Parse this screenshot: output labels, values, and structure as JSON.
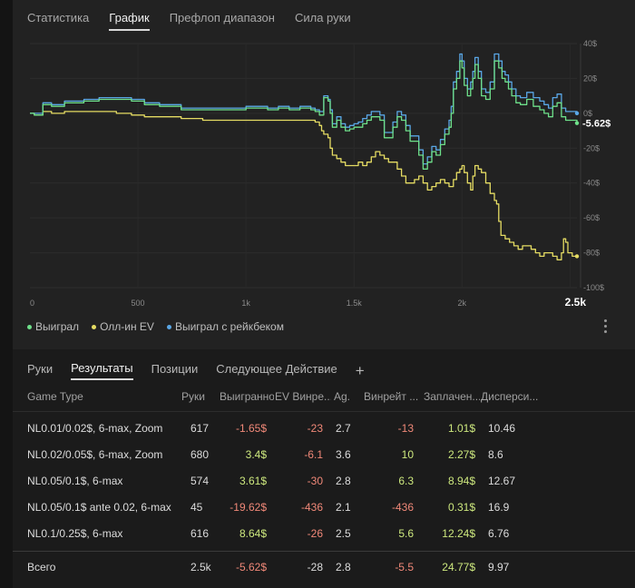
{
  "top_tabs": [
    {
      "label": "Статистика",
      "active": false
    },
    {
      "label": "График",
      "active": true
    },
    {
      "label": "Префлоп диапазон",
      "active": false
    },
    {
      "label": "Сила руки",
      "active": false
    }
  ],
  "chart_data": {
    "type": "line",
    "x_ticks": [
      "0",
      "500",
      "1k",
      "1.5k",
      "2k",
      "2.5k"
    ],
    "x_tick_values": [
      0,
      500,
      1000,
      1500,
      2000,
      2500
    ],
    "xlim": [
      0,
      2532
    ],
    "y_ticks": [
      "40$",
      "20$",
      "0$",
      "-20$",
      "-40$",
      "-60$",
      "-80$",
      "-100$"
    ],
    "y_tick_values": [
      40,
      20,
      0,
      -20,
      -40,
      -60,
      -80,
      -100
    ],
    "ylim": [
      -100,
      40
    ],
    "current_value_label": "-5.62$",
    "current_value": -5.62,
    "current_x_label": "2.5k",
    "series": [
      {
        "name": "Выиграл",
        "color": "#6ee08a",
        "points": [
          [
            0,
            0
          ],
          [
            20,
            -1
          ],
          [
            60,
            5
          ],
          [
            100,
            4
          ],
          [
            160,
            6
          ],
          [
            250,
            7
          ],
          [
            320,
            8
          ],
          [
            400,
            8
          ],
          [
            470,
            7
          ],
          [
            530,
            5
          ],
          [
            600,
            4
          ],
          [
            700,
            2
          ],
          [
            800,
            2
          ],
          [
            900,
            2
          ],
          [
            1000,
            3
          ],
          [
            1060,
            3
          ],
          [
            1100,
            2
          ],
          [
            1150,
            3
          ],
          [
            1200,
            2
          ],
          [
            1250,
            3
          ],
          [
            1300,
            2
          ],
          [
            1320,
            1
          ],
          [
            1340,
            -1
          ],
          [
            1360,
            9
          ],
          [
            1380,
            7
          ],
          [
            1390,
            0
          ],
          [
            1400,
            -8
          ],
          [
            1420,
            -4
          ],
          [
            1440,
            -8
          ],
          [
            1460,
            -10
          ],
          [
            1480,
            -9
          ],
          [
            1500,
            -8
          ],
          [
            1520,
            -8
          ],
          [
            1540,
            -6
          ],
          [
            1560,
            -4
          ],
          [
            1580,
            -2
          ],
          [
            1600,
            -2
          ],
          [
            1620,
            -4
          ],
          [
            1640,
            -14
          ],
          [
            1660,
            -14
          ],
          [
            1680,
            -8
          ],
          [
            1700,
            -2
          ],
          [
            1720,
            -4
          ],
          [
            1740,
            -10
          ],
          [
            1760,
            -16
          ],
          [
            1780,
            -16
          ],
          [
            1800,
            -24
          ],
          [
            1820,
            -32
          ],
          [
            1840,
            -28
          ],
          [
            1860,
            -22
          ],
          [
            1880,
            -24
          ],
          [
            1900,
            -18
          ],
          [
            1920,
            -12
          ],
          [
            1940,
            -8
          ],
          [
            1950,
            0
          ],
          [
            1960,
            14
          ],
          [
            1975,
            20
          ],
          [
            1990,
            30
          ],
          [
            2000,
            26
          ],
          [
            2010,
            16
          ],
          [
            2025,
            10
          ],
          [
            2040,
            14
          ],
          [
            2050,
            20
          ],
          [
            2060,
            28
          ],
          [
            2075,
            20
          ],
          [
            2090,
            10
          ],
          [
            2110,
            8
          ],
          [
            2130,
            14
          ],
          [
            2150,
            30
          ],
          [
            2170,
            26
          ],
          [
            2185,
            20
          ],
          [
            2200,
            18
          ],
          [
            2215,
            14
          ],
          [
            2230,
            10
          ],
          [
            2250,
            6
          ],
          [
            2270,
            5
          ],
          [
            2300,
            8
          ],
          [
            2330,
            4
          ],
          [
            2360,
            2
          ],
          [
            2380,
            0
          ],
          [
            2400,
            -2
          ],
          [
            2420,
            4
          ],
          [
            2440,
            6
          ],
          [
            2460,
            -2
          ],
          [
            2480,
            -4
          ],
          [
            2500,
            -4
          ],
          [
            2532,
            -5.62
          ]
        ]
      },
      {
        "name": "Олл-ин EV",
        "color": "#e5dc63",
        "points": [
          [
            0,
            0
          ],
          [
            20,
            -1
          ],
          [
            60,
            1
          ],
          [
            100,
            0
          ],
          [
            160,
            1
          ],
          [
            250,
            1
          ],
          [
            320,
            1
          ],
          [
            400,
            0
          ],
          [
            470,
            -1
          ],
          [
            530,
            -2
          ],
          [
            600,
            -2
          ],
          [
            700,
            -3
          ],
          [
            800,
            -4
          ],
          [
            900,
            -4
          ],
          [
            1000,
            -4
          ],
          [
            1060,
            -4
          ],
          [
            1100,
            -4
          ],
          [
            1150,
            -4
          ],
          [
            1200,
            -4
          ],
          [
            1250,
            -4
          ],
          [
            1300,
            -4
          ],
          [
            1320,
            -5
          ],
          [
            1340,
            -7
          ],
          [
            1350,
            -10
          ],
          [
            1360,
            -12
          ],
          [
            1380,
            -14
          ],
          [
            1390,
            -20
          ],
          [
            1400,
            -24
          ],
          [
            1420,
            -26
          ],
          [
            1440,
            -28
          ],
          [
            1460,
            -30
          ],
          [
            1480,
            -30
          ],
          [
            1500,
            -30
          ],
          [
            1520,
            -28
          ],
          [
            1540,
            -30
          ],
          [
            1560,
            -28
          ],
          [
            1580,
            -25
          ],
          [
            1600,
            -22
          ],
          [
            1620,
            -24
          ],
          [
            1640,
            -26
          ],
          [
            1660,
            -28
          ],
          [
            1680,
            -28
          ],
          [
            1700,
            -32
          ],
          [
            1720,
            -36
          ],
          [
            1740,
            -40
          ],
          [
            1760,
            -40
          ],
          [
            1780,
            -38
          ],
          [
            1800,
            -36
          ],
          [
            1820,
            -40
          ],
          [
            1840,
            -44
          ],
          [
            1860,
            -42
          ],
          [
            1880,
            -40
          ],
          [
            1900,
            -38
          ],
          [
            1920,
            -40
          ],
          [
            1940,
            -42
          ],
          [
            1960,
            -38
          ],
          [
            1975,
            -34
          ],
          [
            1990,
            -32
          ],
          [
            2000,
            -30
          ],
          [
            2010,
            -34
          ],
          [
            2025,
            -40
          ],
          [
            2040,
            -44
          ],
          [
            2050,
            -36
          ],
          [
            2060,
            -30
          ],
          [
            2075,
            -32
          ],
          [
            2090,
            -34
          ],
          [
            2110,
            -40
          ],
          [
            2130,
            -46
          ],
          [
            2150,
            -50
          ],
          [
            2160,
            -52
          ],
          [
            2170,
            -62
          ],
          [
            2180,
            -70
          ],
          [
            2200,
            -72
          ],
          [
            2220,
            -74
          ],
          [
            2240,
            -76
          ],
          [
            2260,
            -78
          ],
          [
            2280,
            -76
          ],
          [
            2300,
            -76
          ],
          [
            2320,
            -78
          ],
          [
            2340,
            -80
          ],
          [
            2360,
            -82
          ],
          [
            2380,
            -80
          ],
          [
            2400,
            -80
          ],
          [
            2420,
            -82
          ],
          [
            2440,
            -84
          ],
          [
            2460,
            -80
          ],
          [
            2470,
            -72
          ],
          [
            2480,
            -74
          ],
          [
            2490,
            -80
          ],
          [
            2510,
            -82
          ],
          [
            2532,
            -82
          ]
        ]
      },
      {
        "name": "Выиграл с рейкбеком",
        "color": "#5aa7e6",
        "points": [
          [
            0,
            0
          ],
          [
            20,
            0
          ],
          [
            60,
            6
          ],
          [
            100,
            5
          ],
          [
            160,
            7
          ],
          [
            250,
            8
          ],
          [
            320,
            9
          ],
          [
            400,
            9
          ],
          [
            470,
            8
          ],
          [
            530,
            6
          ],
          [
            600,
            5
          ],
          [
            700,
            3
          ],
          [
            800,
            3
          ],
          [
            900,
            3
          ],
          [
            1000,
            4
          ],
          [
            1060,
            4
          ],
          [
            1100,
            3
          ],
          [
            1150,
            4
          ],
          [
            1200,
            3
          ],
          [
            1250,
            4
          ],
          [
            1300,
            3
          ],
          [
            1320,
            2
          ],
          [
            1340,
            1
          ],
          [
            1360,
            10
          ],
          [
            1380,
            8
          ],
          [
            1390,
            2
          ],
          [
            1400,
            -6
          ],
          [
            1420,
            -2
          ],
          [
            1440,
            -6
          ],
          [
            1460,
            -8
          ],
          [
            1480,
            -7
          ],
          [
            1500,
            -6
          ],
          [
            1520,
            -5
          ],
          [
            1540,
            -3
          ],
          [
            1560,
            -1
          ],
          [
            1580,
            1
          ],
          [
            1600,
            1
          ],
          [
            1620,
            -1
          ],
          [
            1640,
            -11
          ],
          [
            1660,
            -11
          ],
          [
            1680,
            -5
          ],
          [
            1700,
            1
          ],
          [
            1720,
            -1
          ],
          [
            1740,
            -7
          ],
          [
            1760,
            -13
          ],
          [
            1780,
            -13
          ],
          [
            1800,
            -21
          ],
          [
            1820,
            -29
          ],
          [
            1840,
            -25
          ],
          [
            1860,
            -19
          ],
          [
            1880,
            -21
          ],
          [
            1900,
            -15
          ],
          [
            1920,
            -9
          ],
          [
            1940,
            -4
          ],
          [
            1950,
            4
          ],
          [
            1960,
            18
          ],
          [
            1975,
            24
          ],
          [
            1990,
            34
          ],
          [
            2000,
            30
          ],
          [
            2010,
            20
          ],
          [
            2025,
            14
          ],
          [
            2040,
            18
          ],
          [
            2050,
            24
          ],
          [
            2060,
            32
          ],
          [
            2075,
            24
          ],
          [
            2090,
            14
          ],
          [
            2110,
            12
          ],
          [
            2130,
            18
          ],
          [
            2150,
            34
          ],
          [
            2170,
            30
          ],
          [
            2185,
            24
          ],
          [
            2200,
            22
          ],
          [
            2215,
            18
          ],
          [
            2230,
            14
          ],
          [
            2250,
            10
          ],
          [
            2270,
            9
          ],
          [
            2300,
            12
          ],
          [
            2330,
            9
          ],
          [
            2360,
            7
          ],
          [
            2380,
            5
          ],
          [
            2400,
            3
          ],
          [
            2420,
            9
          ],
          [
            2440,
            11
          ],
          [
            2460,
            3
          ],
          [
            2480,
            1
          ],
          [
            2500,
            1
          ],
          [
            2532,
            0
          ]
        ]
      }
    ],
    "legend_position": "bottom-left"
  },
  "legend": [
    {
      "label": "Выиграл",
      "color": "#6ee08a"
    },
    {
      "label": "Олл-ин EV",
      "color": "#e5dc63"
    },
    {
      "label": "Выиграл с рейкбеком",
      "color": "#5aa7e6"
    }
  ],
  "bottom_tabs": [
    {
      "label": "Руки",
      "active": false
    },
    {
      "label": "Результаты",
      "active": true
    },
    {
      "label": "Позиции",
      "active": false
    },
    {
      "label": "Следующее Действие",
      "active": false
    }
  ],
  "add_tab_glyph": "+",
  "table": {
    "headers": [
      "Game Type",
      "Руки",
      "Выигранно",
      "EV Винре...",
      "Ag.",
      "Винрейт ...",
      "Заплачен...",
      "Дисперси..."
    ],
    "rows": [
      {
        "game": "NL0.01/0.02$, 6-max, Zoom",
        "hands": "617",
        "won": "-1.65$",
        "won_sign": "neg",
        "ev": "-23",
        "ev_sign": "neg",
        "ag": "2.7",
        "wr": "-13",
        "wr_sign": "neg",
        "rake": "1.01$",
        "disp": "10.46"
      },
      {
        "game": "NL0.02/0.05$, 6-max, Zoom",
        "hands": "680",
        "won": "3.4$",
        "won_sign": "pos",
        "ev": "-6.1",
        "ev_sign": "neg",
        "ag": "3.6",
        "wr": "10",
        "wr_sign": "pos",
        "rake": "2.27$",
        "disp": "8.6"
      },
      {
        "game": "NL0.05/0.1$, 6-max",
        "hands": "574",
        "won": "3.61$",
        "won_sign": "pos",
        "ev": "-30",
        "ev_sign": "neg",
        "ag": "2.8",
        "wr": "6.3",
        "wr_sign": "pos",
        "rake": "8.94$",
        "disp": "12.67"
      },
      {
        "game": "NL0.05/0.1$ ante 0.02, 6-max",
        "hands": "45",
        "won": "-19.62$",
        "won_sign": "neg",
        "ev": "-436",
        "ev_sign": "neg",
        "ag": "2.1",
        "wr": "-436",
        "wr_sign": "neg",
        "rake": "0.31$",
        "disp": "16.9"
      },
      {
        "game": "NL0.1/0.25$, 6-max",
        "hands": "616",
        "won": "8.64$",
        "won_sign": "pos",
        "ev": "-26",
        "ev_sign": "neg",
        "ag": "2.5",
        "wr": "5.6",
        "wr_sign": "pos",
        "rake": "12.24$",
        "disp": "6.76"
      }
    ],
    "total": {
      "game": "Всего",
      "hands": "2.5k",
      "won": "-5.62$",
      "won_sign": "neg",
      "ev": "-28",
      "ev_sign": "neg",
      "ag": "2.8",
      "wr": "-5.5",
      "wr_sign": "neg",
      "rake": "24.77$",
      "disp": "9.97"
    }
  },
  "colors": {
    "negative": "#f08878",
    "positive": "#cde87e",
    "chart_bg": "#222222",
    "page_bg": "#1b1b1b"
  },
  "icons": {
    "more": "vertical-ellipsis-icon",
    "add": "plus-icon"
  }
}
